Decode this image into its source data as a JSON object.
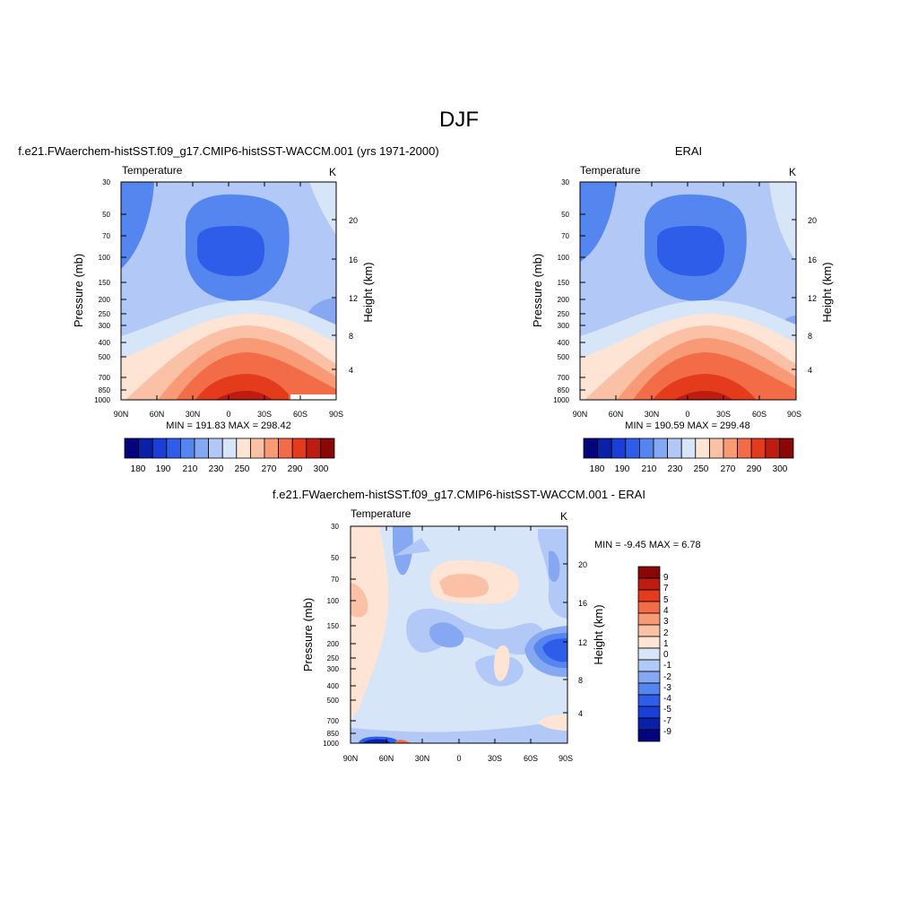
{
  "figure": {
    "title": "DJF",
    "diff_title": "f.e21.FWaerchem-histSST.f09_g17.CMIP6-histSST-WACCM.001 - ERAI"
  },
  "chart_data": [
    {
      "type": "heatmap",
      "name": "model",
      "title": "f.e21.FWaerchem-histSST.f09_g17.CMIP6-histSST-WACCM.001 (yrs 1971-2000)",
      "left_label": "Temperature",
      "units": "K",
      "ylabel": "Pressure (mb)",
      "y2label": "Height (km)",
      "x_ticks": [
        "90N",
        "60N",
        "30N",
        "0",
        "30S",
        "60S",
        "90S"
      ],
      "y_ticks": [
        "30",
        "50",
        "70",
        "100",
        "150",
        "200",
        "250",
        "300",
        "400",
        "500",
        "700",
        "850",
        "1000"
      ],
      "y2_ticks": [
        "20",
        "16",
        "12",
        "8",
        "4"
      ],
      "stats": "MIN = 191.83  MAX = 298.42",
      "colorbar_labels": [
        "180",
        "190",
        "210",
        "230",
        "250",
        "270",
        "290",
        "300"
      ]
    },
    {
      "type": "heatmap",
      "name": "obs",
      "title": "ERAI",
      "left_label": "Temperature",
      "units": "K",
      "ylabel": "Pressure (mb)",
      "y2label": "Height (km)",
      "x_ticks": [
        "90N",
        "60N",
        "30N",
        "0",
        "30S",
        "60S",
        "90S"
      ],
      "y_ticks": [
        "30",
        "50",
        "70",
        "100",
        "150",
        "200",
        "250",
        "300",
        "400",
        "500",
        "700",
        "850",
        "1000"
      ],
      "y2_ticks": [
        "20",
        "16",
        "12",
        "8",
        "4"
      ],
      "stats": "MIN = 190.59  MAX = 299.48",
      "colorbar_labels": [
        "180",
        "190",
        "210",
        "230",
        "250",
        "270",
        "290",
        "300"
      ]
    },
    {
      "type": "heatmap",
      "name": "diff",
      "left_label": "Temperature",
      "units": "K",
      "ylabel": "Pressure (mb)",
      "y2label": "Height (km)",
      "x_ticks": [
        "90N",
        "60N",
        "30N",
        "0",
        "30S",
        "60S",
        "90S"
      ],
      "y_ticks": [
        "30",
        "50",
        "70",
        "100",
        "150",
        "200",
        "250",
        "300",
        "400",
        "500",
        "700",
        "850",
        "1000"
      ],
      "y2_ticks": [
        "20",
        "16",
        "12",
        "8",
        "4"
      ],
      "stats": "MIN =  -9.45  MAX =   6.78",
      "colorbar_labels": [
        "9",
        "7",
        "5",
        "4",
        "3",
        "2",
        "1",
        "0",
        "-1",
        "-2",
        "-3",
        "-4",
        "-5",
        "-7",
        "-9"
      ]
    }
  ],
  "colors": {
    "abs_colorbar": [
      "#04047d",
      "#0a20a8",
      "#1a3fd8",
      "#2e5ee9",
      "#5585ee",
      "#86a8f2",
      "#b2c8f6",
      "#d7e5f8",
      "#fde4d5",
      "#fbc1a6",
      "#f89a75",
      "#f26c47",
      "#e33b1c",
      "#bd1c10",
      "#880808"
    ],
    "diff_colorbar": [
      "#880808",
      "#bd1c10",
      "#e33b1c",
      "#f26c47",
      "#f89a75",
      "#fbc1a6",
      "#fde4d5",
      "#d7e5f8",
      "#b2c8f6",
      "#86a8f2",
      "#5585ee",
      "#2e5ee9",
      "#1a3fd8",
      "#0a20a8",
      "#04047d"
    ],
    "diff_fill": [
      "#d7e5f8",
      "#b2c8f6",
      "#86a8f2",
      "#5585ee",
      "#2e5ee9",
      "#fde4d5",
      "#fbc1a6"
    ]
  }
}
